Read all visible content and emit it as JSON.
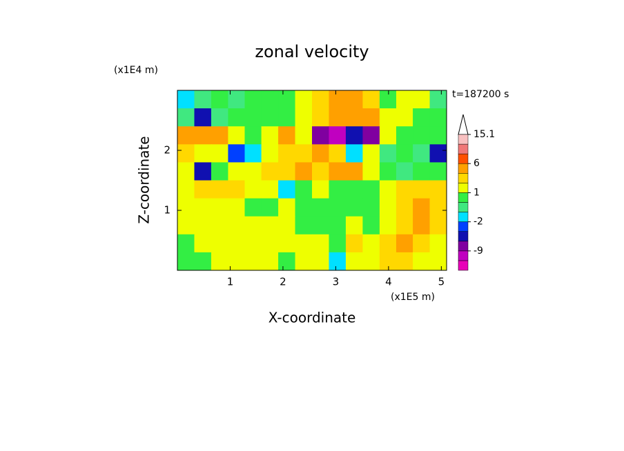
{
  "chart_data": {
    "type": "contour",
    "title": "zonal velocity",
    "xlabel": "X-coordinate",
    "ylabel": "Z-coordinate",
    "x_unit": "(x1E5 m)",
    "y_unit": "(x1E4 m)",
    "annotation": "t=187200 s",
    "xlim": [
      0,
      5.1
    ],
    "ylim": [
      0,
      3
    ],
    "xticks": [
      1,
      2,
      3,
      4,
      5
    ],
    "yticks": [
      1,
      2
    ],
    "x": [
      0.16,
      0.48,
      0.8,
      1.12,
      1.43,
      1.75,
      2.07,
      2.39,
      2.71,
      3.03,
      3.35,
      3.67,
      3.99,
      4.3,
      4.62,
      4.94
    ],
    "y": [
      2.85,
      2.55,
      2.25,
      1.95,
      1.65,
      1.35,
      1.05,
      0.75,
      0.45,
      0.15
    ],
    "z": [
      [
        -2,
        -1,
        0.5,
        -0.5,
        0.5,
        0.5,
        0.5,
        1.5,
        2.5,
        4,
        4.5,
        2,
        0.5,
        1.5,
        1,
        -1
      ],
      [
        -1,
        -6,
        -1,
        0.5,
        0.5,
        0.5,
        0.5,
        1.5,
        2,
        3,
        4,
        4,
        1,
        1,
        0.5,
        0.5
      ],
      [
        3,
        4,
        3,
        1.5,
        0.5,
        1.5,
        3,
        1,
        -9,
        -12,
        -6,
        -8,
        1,
        0.5,
        0.5,
        0.5
      ],
      [
        2,
        1,
        1.5,
        -3,
        -2,
        1.5,
        2,
        2,
        3,
        2,
        -2,
        1,
        -1,
        0.5,
        -1,
        -4
      ],
      [
        1,
        -6,
        0.5,
        1.5,
        1.5,
        2,
        2.5,
        3,
        2.5,
        3,
        3,
        1.5,
        0.5,
        -1,
        0.5,
        0.5
      ],
      [
        1.5,
        2,
        2.5,
        2,
        1.5,
        1,
        -2,
        0.5,
        1,
        0.5,
        0.5,
        0.5,
        1,
        2,
        2.5,
        2
      ],
      [
        1.5,
        1.5,
        1.5,
        1,
        0.5,
        0.5,
        1,
        0.5,
        0.5,
        0.5,
        0.5,
        0.5,
        1.5,
        2,
        5,
        2
      ],
      [
        1.5,
        1.5,
        1.5,
        1.5,
        1.5,
        1.5,
        1.5,
        0.5,
        0.5,
        0.5,
        1.5,
        0.5,
        1,
        2,
        3,
        2
      ],
      [
        0.5,
        1.5,
        1.5,
        1.5,
        1.5,
        1.5,
        1.5,
        1.5,
        1.5,
        0.5,
        2,
        1.5,
        2,
        3,
        2,
        1.5
      ],
      [
        0.5,
        0.5,
        1.5,
        1.5,
        1.5,
        1.5,
        0.5,
        1.5,
        1.5,
        -2,
        1,
        1.5,
        2,
        2.5,
        1.5,
        1
      ]
    ],
    "levels": [
      -15,
      -12,
      -9,
      -6,
      -3,
      -2,
      -1,
      0,
      1,
      2,
      3,
      6,
      9,
      12,
      15.1
    ],
    "colors": [
      "#e800b8",
      "#c000c0",
      "#8000a0",
      "#1010b0",
      "#0040ff",
      "#00e0ff",
      "#40e880",
      "#33ee44",
      "#eeff00",
      "#ffd800",
      "#ffa000",
      "#ff5000",
      "#f07878",
      "#f8c0c0"
    ],
    "colorbar_ticks": [
      15.1,
      6,
      1,
      -2,
      -9
    ]
  }
}
